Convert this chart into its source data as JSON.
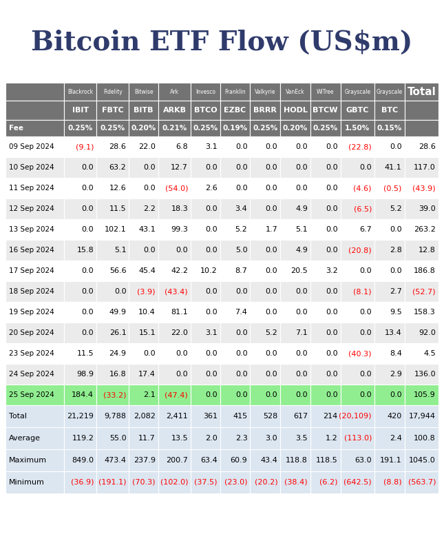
{
  "title": "Bitcoin ETF Flow (US$m)",
  "header_row1": [
    "",
    "Blackrock",
    "Fidelity",
    "Bitwise",
    "Ark",
    "Invesco",
    "Franklin",
    "Valkyrie",
    "VanEck",
    "WiTree",
    "Grayscale",
    "Grayscale",
    "Total"
  ],
  "header_row2": [
    "",
    "IBIT",
    "FBTC",
    "BITB",
    "ARKB",
    "BTCO",
    "EZBC",
    "BRRR",
    "HODL",
    "BTCW",
    "GBTC",
    "BTC",
    ""
  ],
  "fee_row": [
    "Fee",
    "0.25%",
    "0.25%",
    "0.20%",
    "0.21%",
    "0.25%",
    "0.19%",
    "0.25%",
    "0.20%",
    "0.25%",
    "1.50%",
    "0.15%",
    ""
  ],
  "dates": [
    "09 Sep 2024",
    "10 Sep 2024",
    "11 Sep 2024",
    "12 Sep 2024",
    "13 Sep 2024",
    "16 Sep 2024",
    "17 Sep 2024",
    "18 Sep 2024",
    "19 Sep 2024",
    "20 Sep 2024",
    "23 Sep 2024",
    "24 Sep 2024",
    "25 Sep 2024"
  ],
  "data": [
    [
      -9.1,
      28.6,
      22.0,
      6.8,
      3.1,
      0.0,
      0.0,
      0.0,
      0.0,
      -22.8,
      0.0,
      28.6
    ],
    [
      0.0,
      63.2,
      0.0,
      12.7,
      0.0,
      0.0,
      0.0,
      0.0,
      0.0,
      0.0,
      41.1,
      117.0
    ],
    [
      0.0,
      12.6,
      0.0,
      -54.0,
      2.6,
      0.0,
      0.0,
      0.0,
      0.0,
      -4.6,
      -0.5,
      -43.9
    ],
    [
      0.0,
      11.5,
      2.2,
      18.3,
      0.0,
      3.4,
      0.0,
      4.9,
      0.0,
      -6.5,
      5.2,
      39.0
    ],
    [
      0.0,
      102.1,
      43.1,
      99.3,
      0.0,
      5.2,
      1.7,
      5.1,
      0.0,
      6.7,
      0.0,
      263.2
    ],
    [
      15.8,
      5.1,
      0.0,
      0.0,
      0.0,
      5.0,
      0.0,
      4.9,
      0.0,
      -20.8,
      2.8,
      12.8
    ],
    [
      0.0,
      56.6,
      45.4,
      42.2,
      10.2,
      8.7,
      0.0,
      20.5,
      3.2,
      0.0,
      0.0,
      186.8
    ],
    [
      0.0,
      0.0,
      -3.9,
      -43.4,
      0.0,
      0.0,
      0.0,
      0.0,
      0.0,
      -8.1,
      2.7,
      -52.7
    ],
    [
      0.0,
      49.9,
      10.4,
      81.1,
      0.0,
      7.4,
      0.0,
      0.0,
      0.0,
      0.0,
      9.5,
      158.3
    ],
    [
      0.0,
      26.1,
      15.1,
      22.0,
      3.1,
      0.0,
      5.2,
      7.1,
      0.0,
      0.0,
      13.4,
      92.0
    ],
    [
      11.5,
      24.9,
      0.0,
      0.0,
      0.0,
      0.0,
      0.0,
      0.0,
      0.0,
      -40.3,
      8.4,
      4.5
    ],
    [
      98.9,
      16.8,
      17.4,
      0.0,
      0.0,
      0.0,
      0.0,
      0.0,
      0.0,
      0.0,
      2.9,
      136.0
    ],
    [
      184.4,
      -33.2,
      2.1,
      -47.4,
      0.0,
      0.0,
      0.0,
      0.0,
      0.0,
      0.0,
      0.0,
      105.9
    ]
  ],
  "summary_rows": {
    "Total": [
      21219,
      9788,
      2082,
      2411,
      361,
      415,
      528,
      617,
      214,
      -20109,
      420,
      17944
    ],
    "Average": [
      119.2,
      55.0,
      11.7,
      13.5,
      2.0,
      2.3,
      3.0,
      3.5,
      1.2,
      -113.0,
      2.4,
      100.8
    ],
    "Maximum": [
      849.0,
      473.4,
      237.9,
      200.7,
      63.4,
      60.9,
      43.4,
      118.8,
      118.5,
      63.0,
      191.1,
      1045.0
    ],
    "Minimum": [
      -36.9,
      -191.1,
      -70.3,
      -102.0,
      -37.5,
      -23.0,
      -20.2,
      -38.4,
      -6.2,
      -642.5,
      -8.8,
      -563.7
    ]
  },
  "highlight_row_idx": 12,
  "highlight_color": "#90EE90",
  "header_bg": "#737373",
  "header_text": "#ffffff",
  "alt_row_bg": "#EBEBEB",
  "normal_row_bg": "#ffffff",
  "summary_bg": "#DCE6F1",
  "negative_color": "#FF0000",
  "positive_color": "#000000",
  "title_fontsize": 28,
  "inst_fontsize": 5.5,
  "ticker_fontsize": 8.0,
  "fee_fontsize": 7.5,
  "cell_fontsize": 8.0,
  "summary_fontsize": 8.0,
  "total_label_fontsize": 11.0
}
